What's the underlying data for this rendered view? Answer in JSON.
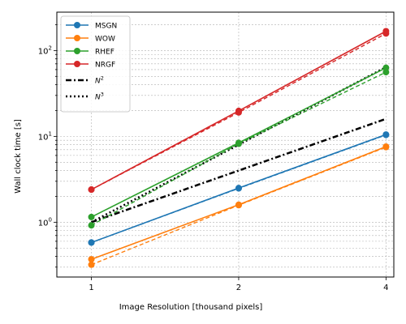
{
  "chart_data": {
    "type": "line",
    "title": "",
    "xlabel": "Image Resolution [thousand pixels]",
    "ylabel": "Wall clock time [s]",
    "x_scale": "log2",
    "y_scale": "log10",
    "xlim": [
      0.85,
      4.15
    ],
    "ylim": [
      0.23,
      280
    ],
    "x_ticks": [
      1,
      2,
      4
    ],
    "x_tick_labels": [
      "1",
      "2",
      "4"
    ],
    "y_ticks": [
      1,
      10,
      100
    ],
    "grid": "both, major and minor",
    "legend": "upper-left",
    "x": [
      1,
      2,
      4
    ],
    "series": [
      {
        "name": "MSGN",
        "color": "#1f77b4",
        "values": [
          0.58,
          2.5,
          10.5
        ],
        "dashed_values": [
          0.58,
          2.48,
          10.4
        ]
      },
      {
        "name": "WOW",
        "color": "#ff7f0e",
        "values": [
          0.37,
          1.6,
          7.6
        ],
        "dashed_values": [
          0.32,
          1.58,
          7.5
        ]
      },
      {
        "name": "RHEF",
        "color": "#2ca02c",
        "values": [
          1.15,
          8.4,
          63
        ],
        "dashed_values": [
          0.92,
          8.2,
          56
        ]
      },
      {
        "name": "NRGF",
        "color": "#d62728",
        "values": [
          2.4,
          19.8,
          168
        ],
        "dashed_values": [
          2.4,
          19.0,
          158
        ]
      }
    ],
    "reference_lines": [
      {
        "name": "$N^2$",
        "name_base": "N",
        "name_exp": "2",
        "style": "dashdot",
        "color": "#000000",
        "values": [
          1.0,
          4.0,
          16.0
        ]
      },
      {
        "name": "$N^3$",
        "name_base": "N",
        "name_exp": "3",
        "style": "dotted",
        "color": "#000000",
        "values": [
          1.0,
          8.0,
          64.0
        ]
      }
    ]
  }
}
